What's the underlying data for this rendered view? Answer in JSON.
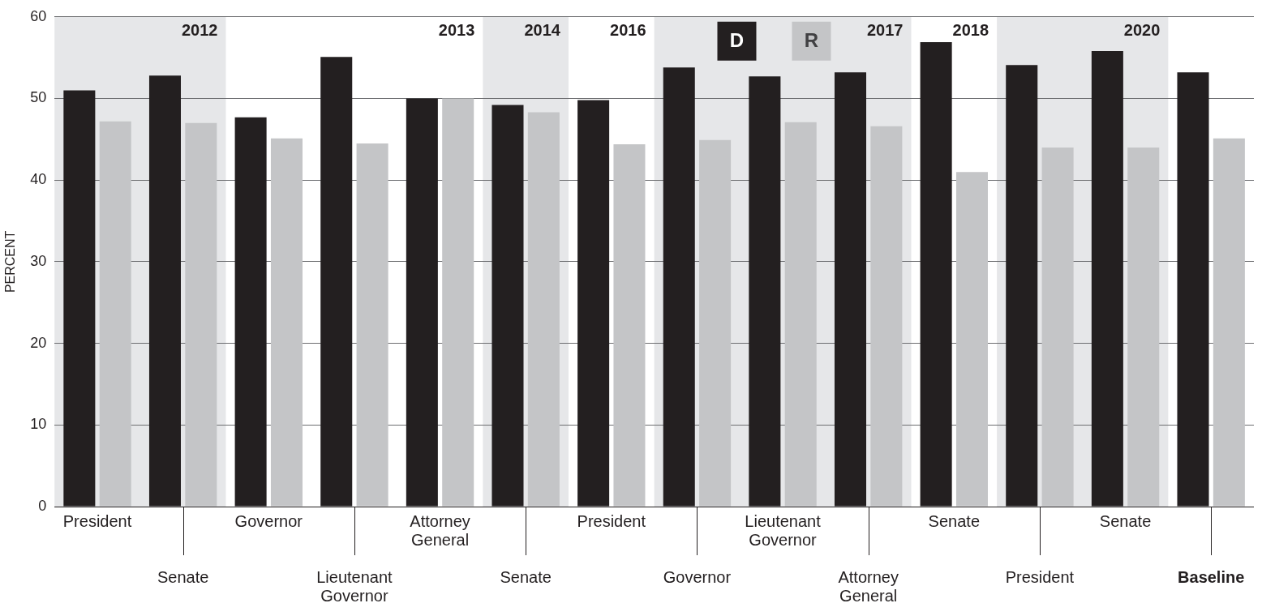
{
  "chart_data": {
    "type": "bar",
    "ylabel": "PERCENT",
    "categories": [
      "President",
      "Senate",
      "Governor",
      "Lieutenant Governor",
      "Attorney General",
      "Senate",
      "President",
      "Governor",
      "Lieutenant Governor",
      "Attorney General",
      "Senate",
      "President",
      "Senate",
      "Baseline"
    ],
    "series": [
      {
        "name": "D",
        "color": "#231f20",
        "values": [
          51.0,
          52.8,
          47.7,
          55.1,
          50.0,
          49.2,
          49.8,
          53.8,
          52.7,
          53.2,
          56.9,
          54.1,
          55.8,
          53.2
        ]
      },
      {
        "name": "R",
        "color": "#c4c5c7",
        "values": [
          47.2,
          47.0,
          45.1,
          44.5,
          50.0,
          48.3,
          44.4,
          44.9,
          47.1,
          46.6,
          41.0,
          44.0,
          44.0,
          45.1
        ]
      }
    ],
    "annotations": [
      "2012",
      "2013",
      "2014",
      "2016",
      "2017",
      "2018",
      "2020"
    ],
    "ylim": [
      0,
      60
    ],
    "yticks": [
      0,
      10,
      20,
      30,
      40,
      50,
      60
    ],
    "grid": "y",
    "legend": "top"
  }
}
